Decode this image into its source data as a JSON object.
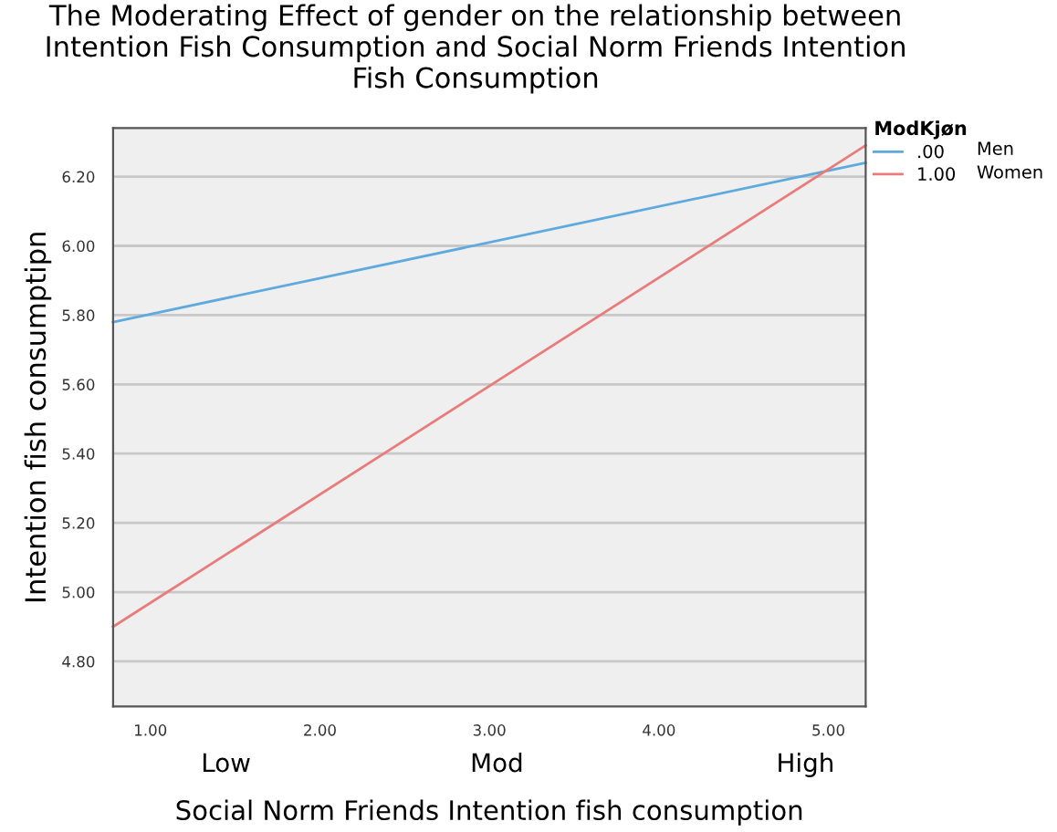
{
  "chart_data": {
    "type": "line",
    "title": "The Moderating Effect of gender on the relationship between\nIntention Fish Consumption and Social Norm Friends Intention\nFish Consumption",
    "xlabel": "Social Norm Friends Intention fish consumption",
    "ylabel": "Intention fish consumptipn",
    "legend_title": "ModKjøn",
    "series": [
      {
        "name": ".00",
        "color": "#5ea9dd",
        "values": [
          5.78,
          6.24
        ]
      },
      {
        "name": "1.00",
        "color": "#e97b7b",
        "values": [
          4.9,
          6.29
        ]
      }
    ],
    "x": [
      0.78,
      5.22
    ],
    "annotations": [
      "Men",
      "Women",
      "Low",
      "Mod",
      "High"
    ],
    "xlim": [
      0.78,
      5.22
    ],
    "xticks": [
      {
        "value": 1,
        "label": "1.00"
      },
      {
        "value": 2,
        "label": "2.00"
      },
      {
        "value": 3,
        "label": "3.00"
      },
      {
        "value": 4,
        "label": "4.00"
      },
      {
        "value": 5,
        "label": "5.00"
      }
    ],
    "ylim": [
      4.67,
      6.34
    ],
    "yticks": [
      {
        "value": 4.8,
        "label": "4.80"
      },
      {
        "value": 5.0,
        "label": "5.00"
      },
      {
        "value": 5.2,
        "label": "5.20"
      },
      {
        "value": 5.4,
        "label": "5.40"
      },
      {
        "value": 5.6,
        "label": "5.60"
      },
      {
        "value": 5.8,
        "label": "5.80"
      },
      {
        "value": 6.0,
        "label": "6.00"
      },
      {
        "value": 6.2,
        "label": "6.20"
      }
    ],
    "grid": "y",
    "legend": "top right",
    "marker": "none",
    "line_style": "solid"
  }
}
